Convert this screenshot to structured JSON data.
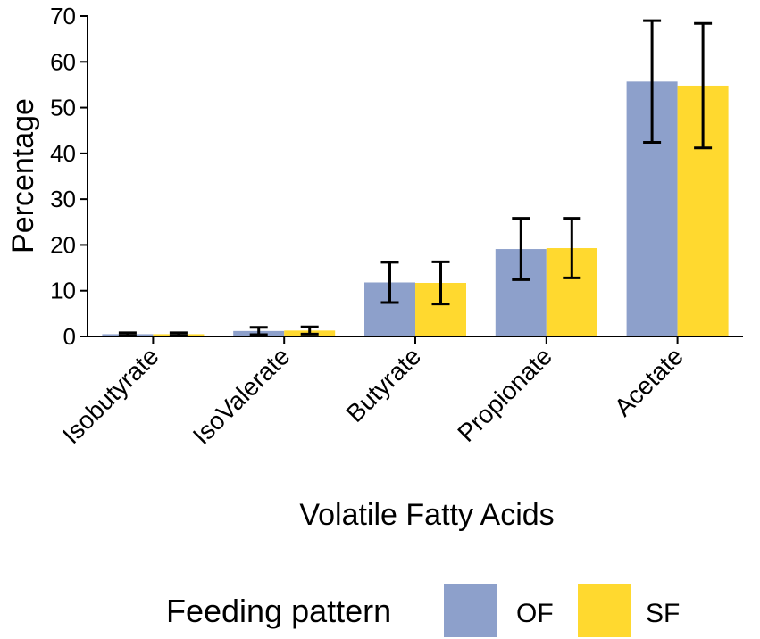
{
  "chart_data": {
    "type": "bar",
    "title": "",
    "xlabel": "Volatile Fatty Acids",
    "ylabel": "Percentage",
    "ylim": [
      0,
      70
    ],
    "yticks": [
      "0",
      "10",
      "20",
      "30",
      "40",
      "50",
      "60",
      "70"
    ],
    "grid": false,
    "categories": [
      "Isobutyrate",
      "IsoValerate",
      "Butyrate",
      "Propionate",
      "Acetate"
    ],
    "series": [
      {
        "name": "OF",
        "color": "#8DA0CB",
        "values": [
          0.5,
          1.2,
          11.8,
          19.1,
          55.7
        ],
        "error": [
          0.3,
          0.8,
          4.4,
          6.7,
          13.3
        ]
      },
      {
        "name": "SF",
        "color": "#FFD92F",
        "values": [
          0.5,
          1.3,
          11.7,
          19.3,
          54.8
        ],
        "error": [
          0.3,
          0.8,
          4.6,
          6.5,
          13.6
        ]
      }
    ],
    "legend": {
      "title": "Feeding pattern",
      "position": "bottom"
    }
  }
}
